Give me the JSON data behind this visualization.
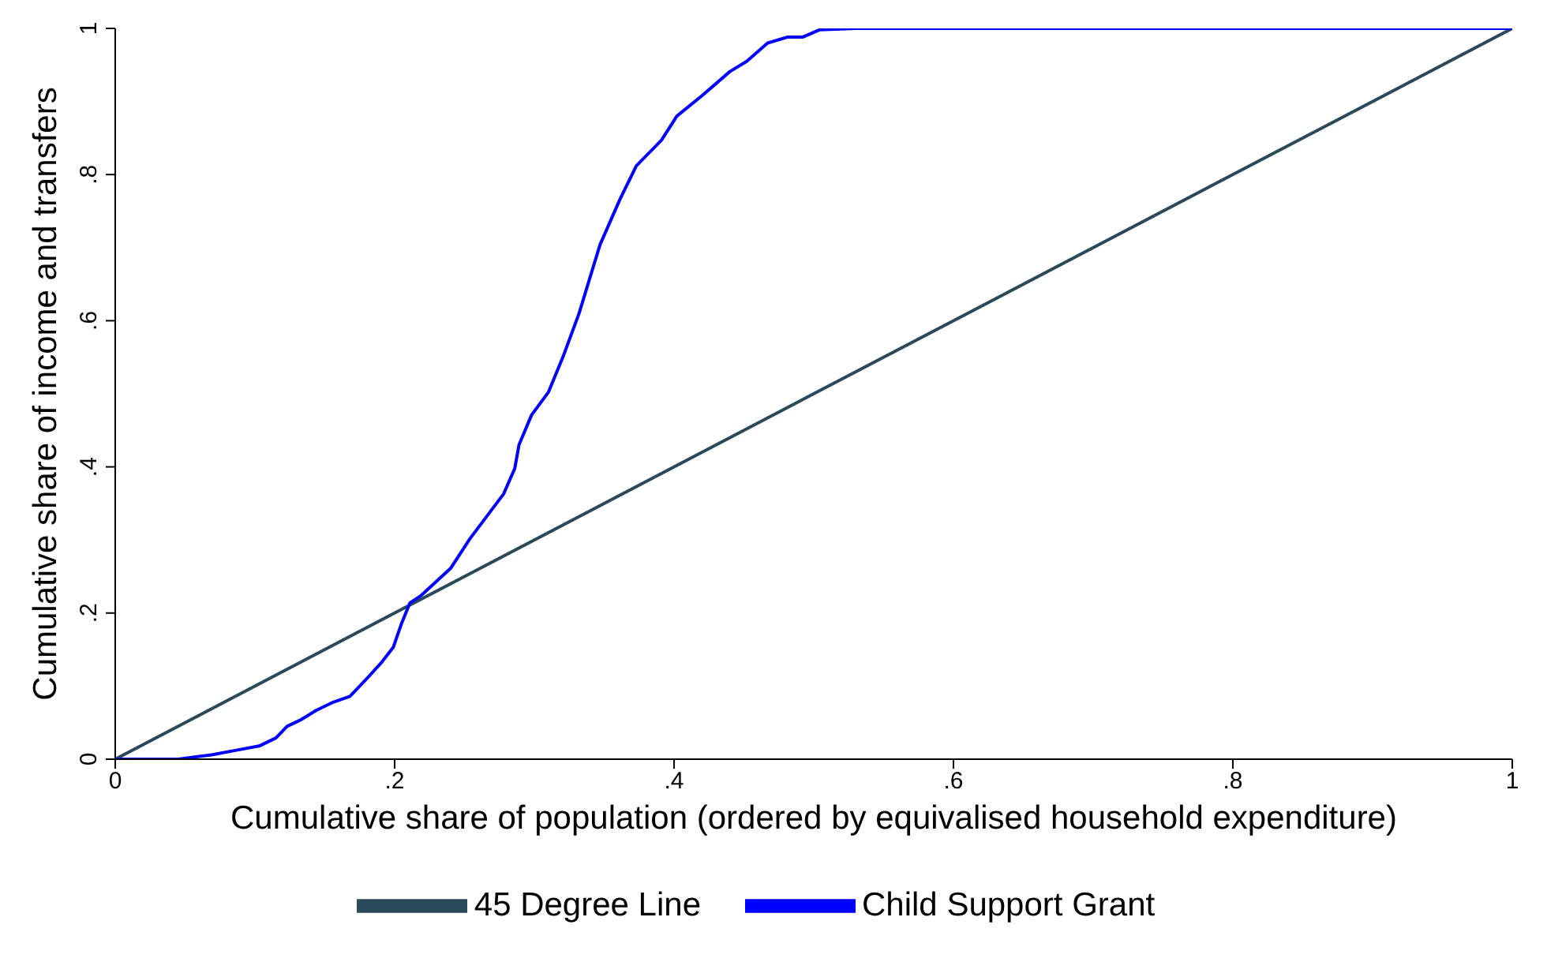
{
  "chart_data": {
    "type": "line",
    "xlabel": "Cumulative share of population (ordered by equivalised household expenditure)",
    "ylabel": "Cumulative share of income and transfers",
    "xlim": [
      0,
      1
    ],
    "ylim": [
      0,
      1
    ],
    "xticks": [
      0,
      {
        "value": 0.2,
        "label": ".2"
      },
      {
        "value": 0.4,
        "label": ".4"
      },
      {
        "value": 0.6,
        "label": ".6"
      },
      {
        "value": 0.8,
        "label": ".8"
      },
      1
    ],
    "yticks": [
      0,
      {
        "value": 0.2,
        "label": ".2"
      },
      {
        "value": 0.4,
        "label": ".4"
      },
      {
        "value": 0.6,
        "label": ".6"
      },
      {
        "value": 0.8,
        "label": ".8"
      },
      1
    ],
    "grid": false,
    "legend": "bottom",
    "marker": "none",
    "line_style": "solid",
    "series": [
      {
        "name": "45 Degree Line",
        "color": "#2a4a5c",
        "x": [
          0,
          1
        ],
        "values": [
          0,
          1
        ]
      },
      {
        "name": "Child Support Grant",
        "color": "#0000ff",
        "x": [
          0,
          0.045,
          0.069,
          0.086,
          0.103,
          0.115,
          0.123,
          0.132,
          0.144,
          0.156,
          0.168,
          0.179,
          0.19,
          0.199,
          0.205,
          0.211,
          0.219,
          0.24,
          0.254,
          0.278,
          0.286,
          0.289,
          0.298,
          0.31,
          0.321,
          0.332,
          0.347,
          0.361,
          0.373,
          0.391,
          0.402,
          0.42,
          0.44,
          0.452,
          0.467,
          0.481,
          0.492,
          0.504,
          0.53,
          1
        ],
        "values": [
          0,
          0,
          0.006,
          0.012,
          0.018,
          0.029,
          0.045,
          0.053,
          0.067,
          0.078,
          0.086,
          0.108,
          0.131,
          0.153,
          0.186,
          0.214,
          0.224,
          0.261,
          0.302,
          0.363,
          0.398,
          0.43,
          0.471,
          0.502,
          0.553,
          0.61,
          0.704,
          0.765,
          0.812,
          0.847,
          0.88,
          0.908,
          0.941,
          0.955,
          0.98,
          0.988,
          0.988,
          0.998,
          1,
          1
        ]
      }
    ]
  }
}
